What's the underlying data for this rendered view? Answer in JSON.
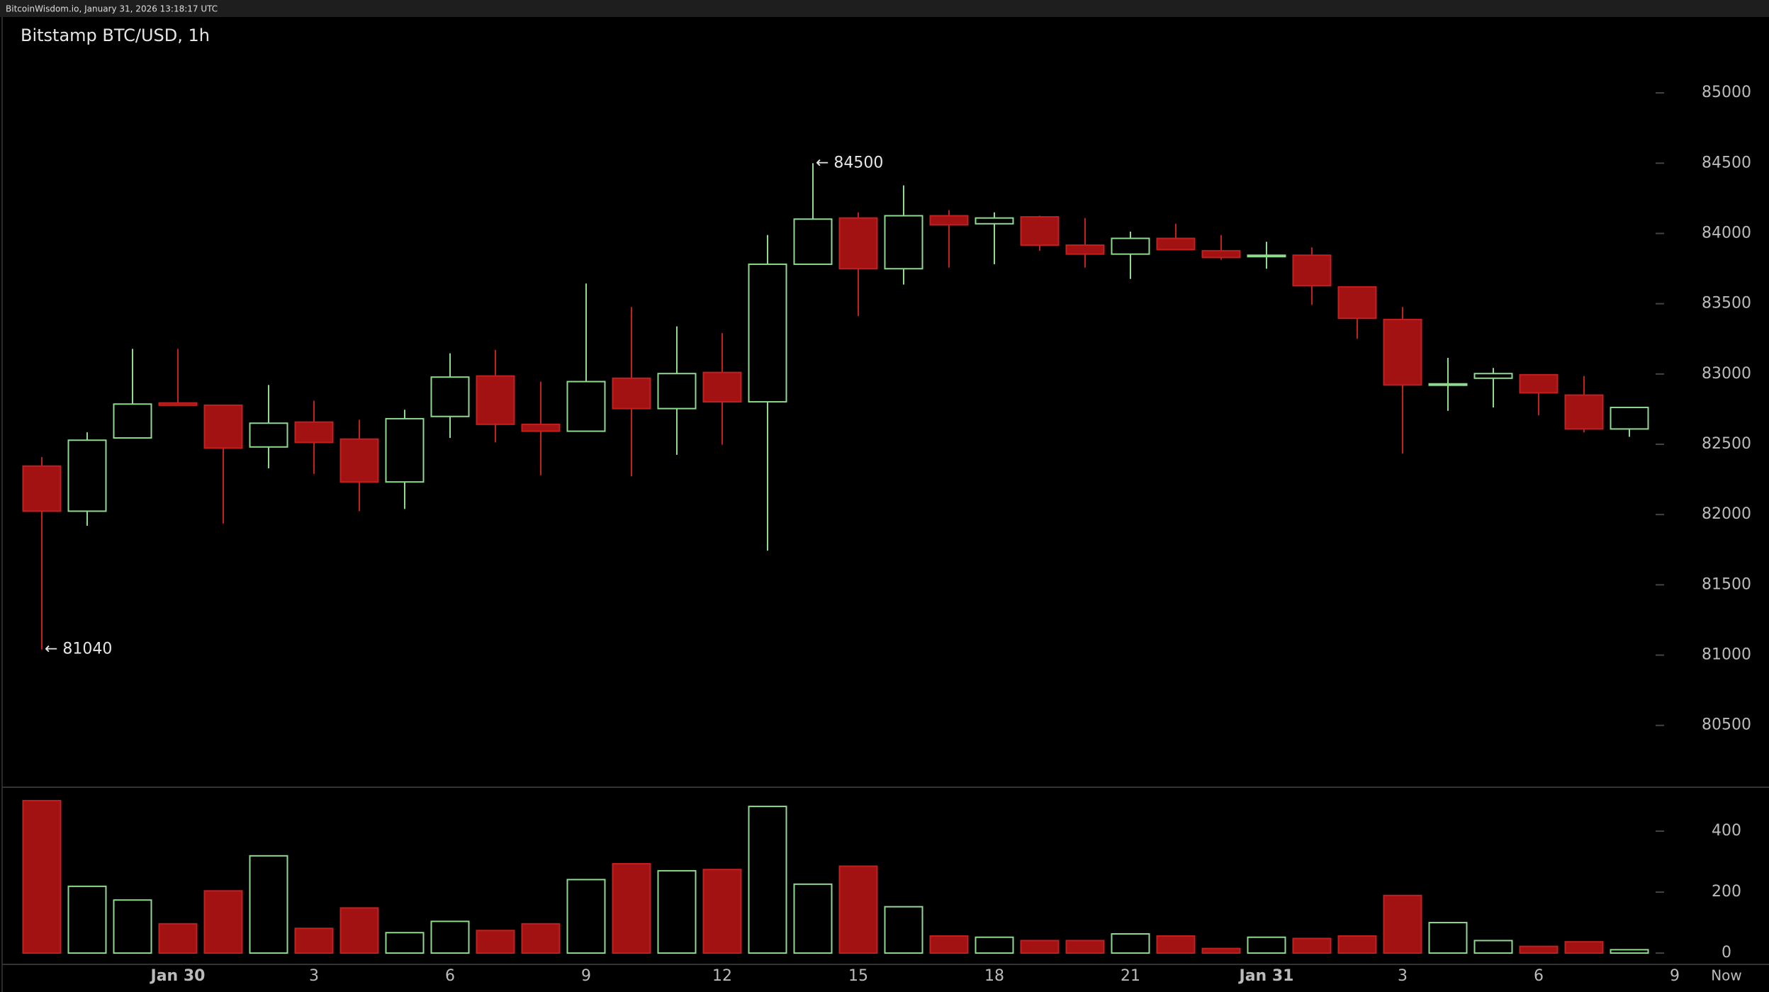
{
  "header": {
    "site_line": "BitcoinWisdom.io, January 31, 2026 13:18:17 UTC"
  },
  "chart_data": {
    "type": "candlestick",
    "title": "Bitstamp BTC/USD, 1h",
    "categories": [
      null,
      null,
      null,
      "Jan 30",
      null,
      null,
      "3",
      null,
      null,
      "6",
      null,
      null,
      "9",
      null,
      null,
      "12",
      null,
      null,
      "15",
      null,
      null,
      "18",
      null,
      null,
      "21",
      null,
      null,
      "Jan 31",
      null,
      null,
      "3",
      null,
      null,
      "6",
      null,
      null,
      "9"
    ],
    "open": [
      82345,
      82024,
      82545,
      82794,
      82778,
      82481,
      82658,
      82537,
      82232,
      82698,
      82986,
      82642,
      82593,
      82970,
      82754,
      83011,
      82802,
      83781,
      84110,
      83749,
      84126,
      84069,
      84118,
      83917,
      83853,
      83965,
      83877,
      83837,
      83845,
      83620,
      83388,
      82922,
      82970,
      82995,
      82850,
      82609,
      null
    ],
    "high": [
      82409,
      82585,
      83179,
      83179,
      82778,
      82922,
      82810,
      82674,
      82746,
      83147,
      83171,
      82946,
      83644,
      83476,
      83339,
      83291,
      83989,
      84500,
      84150,
      84342,
      84166,
      84150,
      84126,
      84110,
      84013,
      84069,
      83989,
      83941,
      83901,
      83620,
      83476,
      83115,
      83043,
      82995,
      82986,
      82762,
      null
    ],
    "low": [
      81040,
      81920,
      82545,
      82778,
      81936,
      82329,
      82289,
      82024,
      82040,
      82545,
      82513,
      82280,
      82593,
      82272,
      82425,
      82497,
      81743,
      83781,
      83412,
      83636,
      83757,
      83781,
      83877,
      83757,
      83676,
      83885,
      83813,
      83749,
      83492,
      83251,
      82433,
      82738,
      82762,
      82706,
      82585,
      82553,
      null
    ],
    "close": [
      82024,
      82529,
      82786,
      82778,
      82473,
      82650,
      82513,
      82232,
      82682,
      82978,
      82642,
      82593,
      82946,
      82754,
      83003,
      82802,
      83781,
      84102,
      83749,
      84126,
      84061,
      84110,
      83917,
      83853,
      83965,
      83885,
      83829,
      83845,
      83628,
      83396,
      82922,
      82930,
      83003,
      82866,
      82609,
      82762,
      null
    ],
    "volume": [
      500,
      219,
      174,
      96,
      204,
      319,
      81,
      148,
      67,
      104,
      74,
      96,
      241,
      293,
      270,
      274,
      481,
      226,
      285,
      152,
      56,
      52,
      41,
      41,
      63,
      56,
      15,
      52,
      48,
      56,
      189,
      100,
      41,
      22,
      37,
      11,
      null
    ],
    "up_color": "#8fd98f",
    "down_color": "#a31212",
    "ylim": [
      80060,
      85540
    ],
    "yticks": [
      80500,
      81000,
      81500,
      82000,
      82500,
      83000,
      83500,
      84000,
      84500,
      85000
    ],
    "y2lim": [
      -37,
      544
    ],
    "y2ticks": [
      0,
      200,
      400
    ],
    "annotations": [
      {
        "text": "← 84500",
        "value": 84500
      },
      {
        "text": "← 81040",
        "value": 81040
      }
    ],
    "now_label": "Now"
  }
}
